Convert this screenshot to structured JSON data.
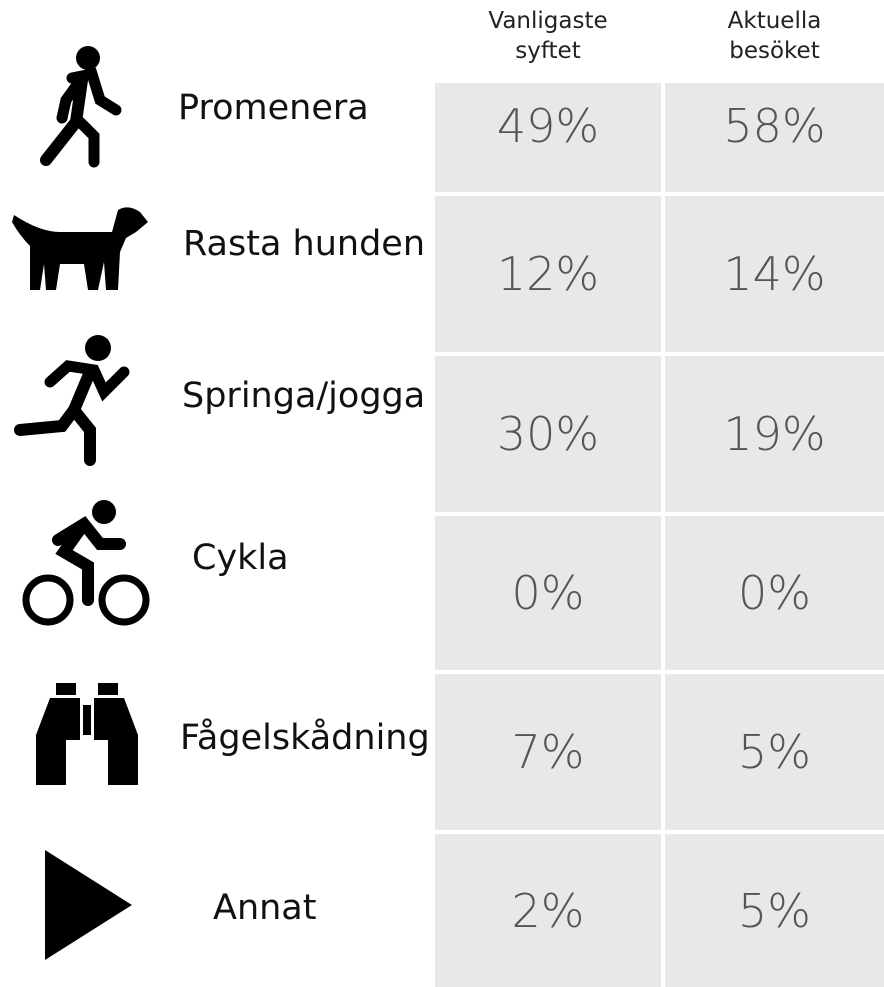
{
  "table": {
    "columns": [
      [
        "Vanligaste",
        "syftet"
      ],
      [
        "Aktuella",
        "besöket"
      ]
    ],
    "rows": [
      {
        "label": "Promenera",
        "values": [
          "49%",
          "58%"
        ]
      },
      {
        "label": "Rasta hunden",
        "values": [
          "12%",
          "14%"
        ]
      },
      {
        "label": "Springa/jogga",
        "values": [
          "30%",
          "19%"
        ]
      },
      {
        "label": "Cykla",
        "values": [
          "0%",
          "0%"
        ]
      },
      {
        "label": "Fågelskådning",
        "values": [
          "7%",
          "5%"
        ]
      },
      {
        "label": "Annat",
        "values": [
          "2%",
          "5%"
        ]
      }
    ]
  }
}
